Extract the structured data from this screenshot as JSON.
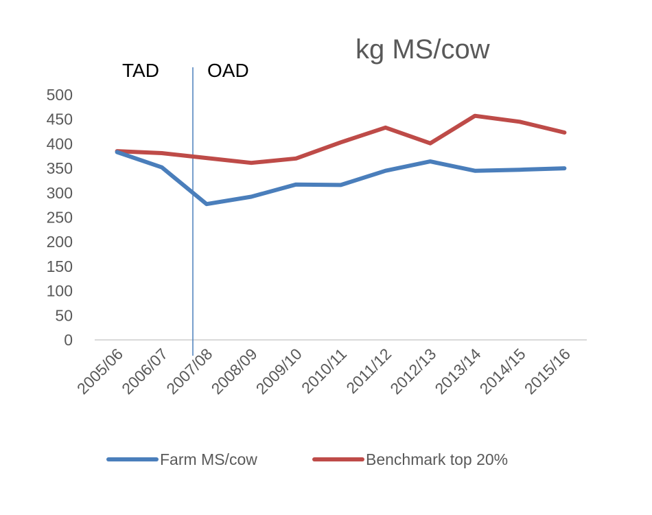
{
  "chart_data": {
    "type": "line",
    "title": "kg MS/cow",
    "categories": [
      "2005/06",
      "2006/07",
      "2007/08",
      "2008/09",
      "2009/10",
      "2010/11",
      "2011/12",
      "2012/13",
      "2013/14",
      "2014/15",
      "2015/16"
    ],
    "yticks": [
      "0",
      "50",
      "100",
      "150",
      "200",
      "250",
      "300",
      "350",
      "400",
      "450",
      "500"
    ],
    "ylim": [
      0,
      500
    ],
    "grid": false,
    "legend_position": "bottom",
    "series": [
      {
        "name": "Farm MS/cow",
        "color": "#4a7ebb",
        "values": [
          383,
          352,
          277,
          292,
          317,
          316,
          345,
          364,
          345,
          347,
          350
        ]
      },
      {
        "name": "Benchmark top 20%",
        "color": "#be4b48",
        "values": [
          385,
          381,
          371,
          361,
          370,
          403,
          433,
          401,
          457,
          445,
          423
        ]
      }
    ],
    "annotations": {
      "left_label": "TAD",
      "right_label": "OAD",
      "divider_color": "#4a7ebb"
    }
  }
}
